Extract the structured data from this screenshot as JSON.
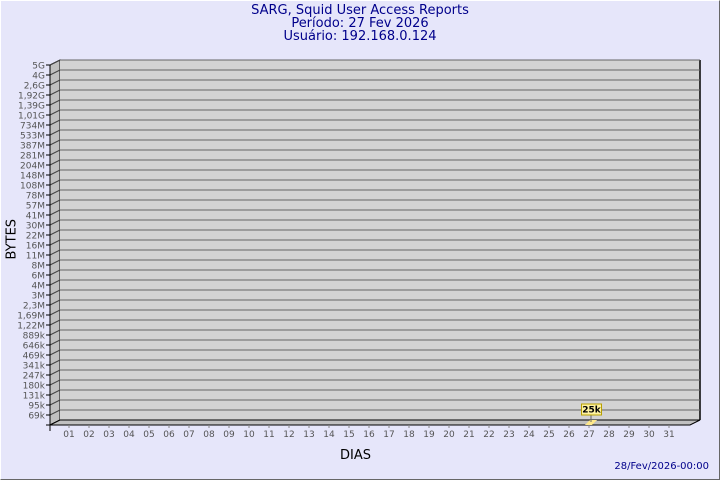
{
  "chart_data": {
    "type": "bar",
    "title": "SARG, Squid User Access Reports",
    "subtitle": [
      "Período: 27 Fev 2026",
      "Usuário: 192.168.0.124"
    ],
    "xlabel": "DIAS",
    "ylabel": "BYTES",
    "y_scale": "log",
    "y_ticks": [
      "5G",
      "4G",
      "2,6G",
      "1,92G",
      "1,39G",
      "1,01G",
      "734M",
      "533M",
      "387M",
      "281M",
      "204M",
      "148M",
      "108M",
      "78M",
      "57M",
      "41M",
      "30M",
      "22M",
      "16M",
      "11M",
      "8M",
      "6M",
      "4M",
      "3M",
      "2,3M",
      "1,69M",
      "1,22M",
      "889k",
      "646k",
      "469k",
      "341k",
      "247k",
      "180k",
      "131k",
      "95k",
      "69k"
    ],
    "categories": [
      "01",
      "02",
      "03",
      "04",
      "05",
      "06",
      "07",
      "08",
      "09",
      "10",
      "11",
      "12",
      "13",
      "14",
      "15",
      "16",
      "17",
      "18",
      "19",
      "20",
      "21",
      "22",
      "23",
      "24",
      "25",
      "26",
      "27",
      "28",
      "29",
      "30",
      "31"
    ],
    "bars": [
      {
        "category": "27",
        "value": 25000,
        "label": "25k"
      }
    ],
    "grid": true,
    "colors": {
      "background": "#e6e6fa",
      "plot": "#d3d3d3",
      "bar": "#ffe88a",
      "label_bg": "#fff3a0",
      "title": "#00008b"
    }
  },
  "footer": {
    "timestamp": "28/Fev/2026-00:00"
  }
}
